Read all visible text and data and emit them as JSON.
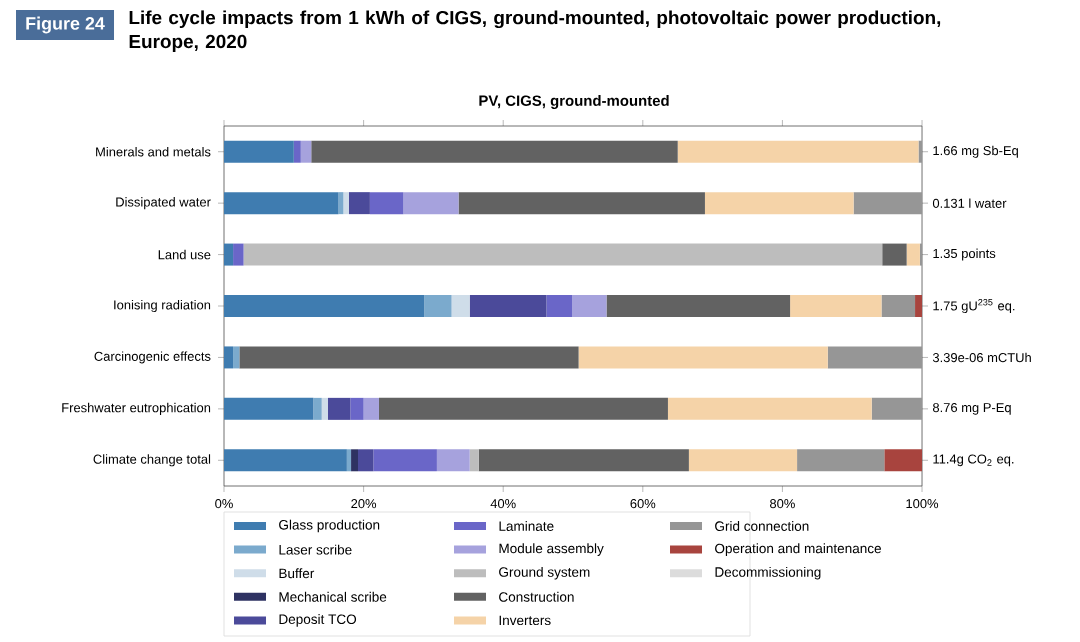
{
  "chart_data": {
    "type": "bar",
    "orientation": "horizontal",
    "stacked": true,
    "title": "Life cycle impacts from 1 kWh of CIGS, ground-mounted, photovoltaic power production, Europe, 2020",
    "subtitle": "PV, CIGS, ground-mounted",
    "annotations": [
      "Figure 24",
      "1.66 mg Sb-Eq",
      "0.131 l water",
      "1.35 points",
      "1.75 gU$^{235}$ eq.",
      "3.39e-06 mCTUh",
      "8.76 mg P-Eq",
      "11.4g CO$_{2}$ eq."
    ],
    "categories": [
      "Minerals and metals",
      "Dissipated water",
      "Land use",
      "Ionising radiation",
      "Carcinogenic effects",
      "Freshwater eutrophication",
      "Climate change total"
    ],
    "xlim": [
      0,
      100
    ],
    "xticks": [
      {
        "value": 0,
        "label": "0%"
      },
      {
        "value": 20,
        "label": "20%"
      },
      {
        "value": 40,
        "label": "40%"
      },
      {
        "value": 60,
        "label": "60%"
      },
      {
        "value": 80,
        "label": "80%"
      },
      {
        "value": 100,
        "label": "100%"
      }
    ],
    "legend": "bottom",
    "series": [
      {
        "name": "Glass production",
        "color": "#3f7cb0",
        "values": [
          10,
          16.4,
          1.3,
          28.7,
          1.3,
          12.8,
          17.6
        ]
      },
      {
        "name": "Laser scribe",
        "color": "#7baacd",
        "values": [
          0,
          0.7,
          0,
          3.9,
          0.9,
          1.2,
          0.6
        ]
      },
      {
        "name": "Buffer",
        "color": "#cfdde9",
        "values": [
          0,
          0.8,
          0,
          2.6,
          0,
          0.9,
          0
        ]
      },
      {
        "name": "Mechanical scribe",
        "color": "#2e3262",
        "values": [
          0,
          0,
          0,
          0,
          0,
          0,
          1.0
        ]
      },
      {
        "name": "Deposit TCO",
        "color": "#4b4a9a",
        "values": [
          0,
          3.0,
          0,
          11.0,
          0,
          3.2,
          2.2
        ]
      },
      {
        "name": "Laminate",
        "color": "#6a66c8",
        "values": [
          1,
          4.8,
          1.5,
          3.7,
          0,
          1.9,
          9.1
        ]
      },
      {
        "name": "Module assembly",
        "color": "#a6a2dd",
        "values": [
          1.5,
          7.9,
          0,
          4.9,
          0,
          2.2,
          4.7
        ]
      },
      {
        "name": "Ground system",
        "color": "#bdbdbd",
        "values": [
          0,
          0,
          91.5,
          0,
          0,
          0,
          1.3
        ]
      },
      {
        "name": "Construction",
        "color": "#626262",
        "values": [
          52.5,
          35.3,
          3.5,
          26.3,
          48.6,
          41.4,
          30.1
        ]
      },
      {
        "name": "Inverters",
        "color": "#f5d3a8",
        "values": [
          34.5,
          21.3,
          1.9,
          13.1,
          35.7,
          29.2,
          15.5
        ]
      },
      {
        "name": "Grid connection",
        "color": "#969696",
        "values": [
          0.5,
          9.8,
          0.3,
          4.8,
          13.5,
          7.2,
          12.5
        ]
      },
      {
        "name": "Operation and maintenance",
        "color": "#a8443e",
        "values": [
          0,
          0,
          0,
          1.0,
          0,
          0,
          5.4
        ]
      },
      {
        "name": "Decommissioning",
        "color": "#dcdcdc",
        "values": [
          0,
          0,
          0,
          0,
          0,
          0,
          0
        ]
      }
    ]
  }
}
